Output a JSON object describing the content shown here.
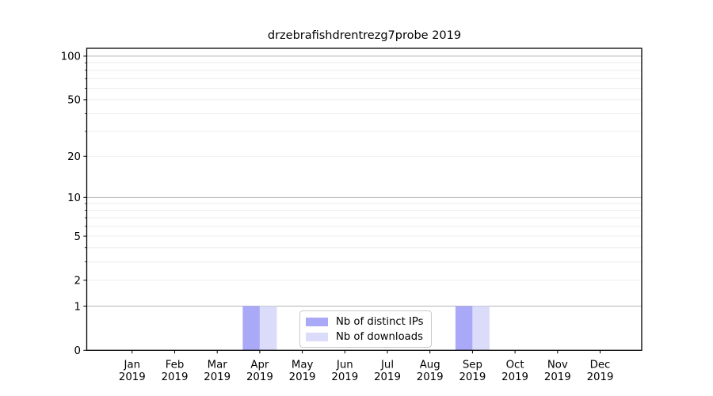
{
  "chart_data": {
    "type": "bar",
    "title": "drzebrafishdrentrezg7probe 2019",
    "categories": [
      "Jan 2019",
      "Feb 2019",
      "Mar 2019",
      "Apr 2019",
      "May 2019",
      "Jun 2019",
      "Jul 2019",
      "Aug 2019",
      "Sep 2019",
      "Oct 2019",
      "Nov 2019",
      "Dec 2019"
    ],
    "series": [
      {
        "name": "Nb of distinct IPs",
        "color": "#a9a9f8",
        "values": [
          0,
          0,
          0,
          1,
          0,
          0,
          0,
          0,
          1,
          0,
          0,
          0
        ]
      },
      {
        "name": "Nb of downloads",
        "color": "#dbdbfa",
        "values": [
          0,
          0,
          0,
          1,
          0,
          0,
          0,
          0,
          1,
          0,
          0,
          0
        ]
      }
    ],
    "xlabel": "",
    "ylabel": "",
    "yscale": "log1p",
    "ytick_labels": [
      0,
      1,
      2,
      5,
      10,
      20,
      50,
      100
    ],
    "ylim": [
      0,
      112
    ],
    "grid": "major dark at powers of 10, faint minors at 2-9 and 20-90",
    "legend_position": "lower center",
    "colors": {
      "major_gridline": "#b4b4b4",
      "minor_gridline": "#ececec",
      "axis": "#000000",
      "text": "#000000",
      "background": "#ffffff"
    }
  }
}
